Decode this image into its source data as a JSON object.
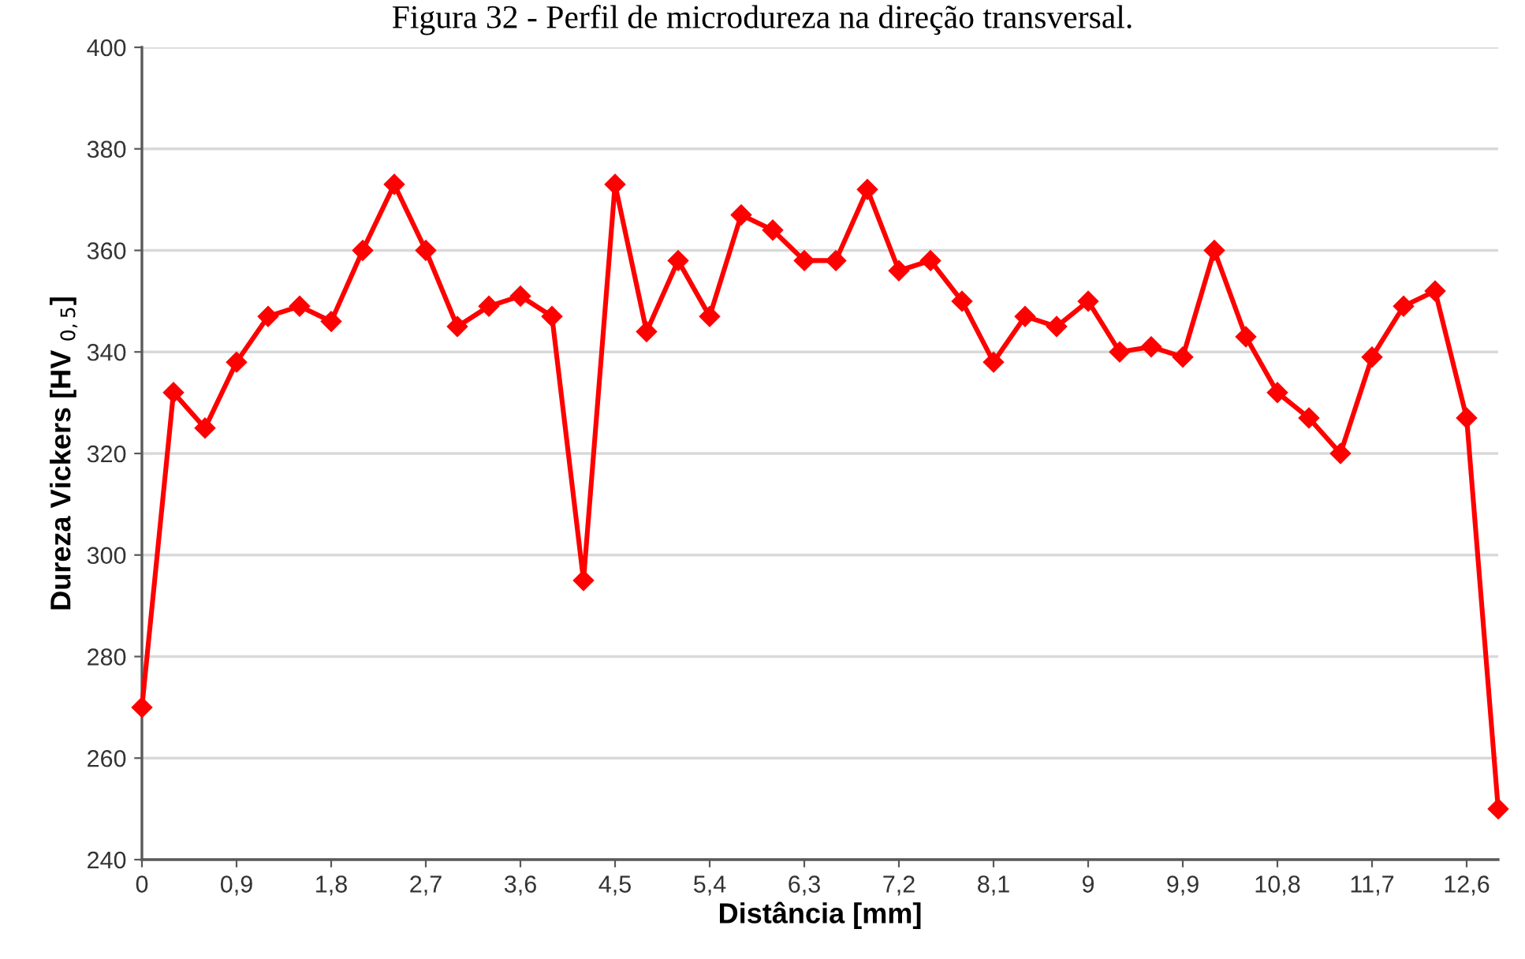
{
  "chart_data": {
    "type": "line",
    "title": "Figura 32 - Perfil de microdureza na direção transversal.",
    "xlabel": "Distância [mm]",
    "ylabel": "Dureza Vickers [HV $_{0,5}$]",
    "x": [
      0,
      0.3,
      0.6,
      0.9,
      1.2,
      1.5,
      1.8,
      2.1,
      2.4,
      2.7,
      3.0,
      3.3,
      3.6,
      3.9,
      4.2,
      4.5,
      4.8,
      5.1,
      5.4,
      5.7,
      6.0,
      6.3,
      6.6,
      6.9,
      7.2,
      7.5,
      7.8,
      8.1,
      8.4,
      8.7,
      9.0,
      9.3,
      9.6,
      9.9,
      10.2,
      10.5,
      10.8,
      11.1,
      11.4,
      11.7,
      12.0,
      12.3,
      12.6,
      12.9
    ],
    "series": [
      {
        "color": "#ff0000",
        "values": [
          270,
          332,
          325,
          338,
          347,
          349,
          346,
          360,
          373,
          360,
          345,
          349,
          351,
          347,
          295,
          373,
          344,
          358,
          347,
          367,
          364,
          358,
          358,
          372,
          356,
          358,
          350,
          338,
          347,
          345,
          350,
          340,
          341,
          339,
          360,
          343,
          332,
          327,
          320,
          339,
          349,
          352,
          327,
          250
        ]
      }
    ],
    "xlim": [
      0,
      12.9
    ],
    "xticks": [
      0,
      {
        "value": 0.9,
        "label": "0,9"
      },
      {
        "value": 1.8,
        "label": "1,8"
      },
      {
        "value": 2.7,
        "label": "2,7"
      },
      {
        "value": 3.6,
        "label": "3,6"
      },
      {
        "value": 4.5,
        "label": "4,5"
      },
      {
        "value": 5.4,
        "label": "5,4"
      },
      {
        "value": 6.3,
        "label": "6,3"
      },
      {
        "value": 7.2,
        "label": "7,2"
      },
      {
        "value": 8.1,
        "label": "8,1"
      },
      9,
      {
        "value": 9.9,
        "label": "9,9"
      },
      {
        "value": 10.8,
        "label": "10,8"
      },
      {
        "value": 11.7,
        "label": "11,7"
      },
      {
        "value": 12.6,
        "label": "12,6"
      }
    ],
    "ylim": [
      240,
      400
    ],
    "yticks": [
      240,
      260,
      280,
      300,
      320,
      340,
      360,
      380,
      400
    ],
    "grid": "y",
    "marker": "diamond",
    "line_style": "solid"
  }
}
